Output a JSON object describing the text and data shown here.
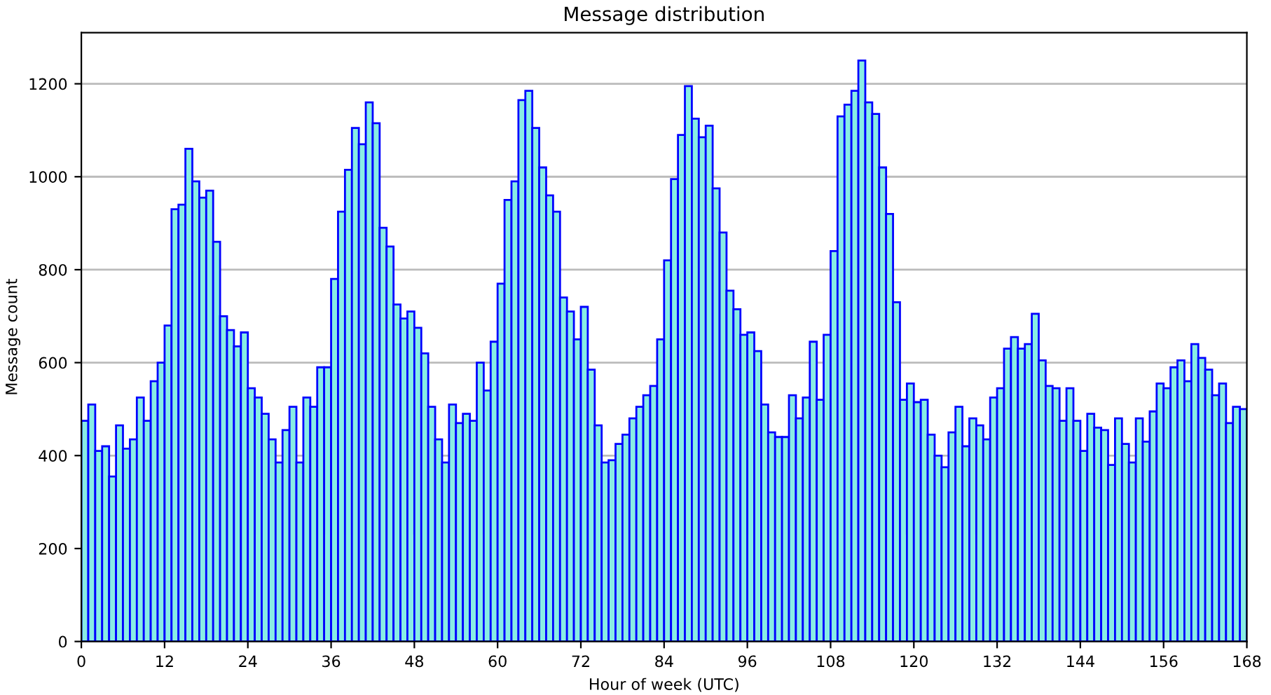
{
  "chart_data": {
    "type": "histogram",
    "title": "Message distribution",
    "xlabel": "Hour of week (UTC)",
    "ylabel": "Message count",
    "bins": [
      0,
      1,
      2,
      3,
      4,
      5,
      6,
      7,
      8,
      9,
      10,
      11,
      12,
      13,
      14,
      15,
      16,
      17,
      18,
      19,
      20,
      21,
      22,
      23,
      24,
      25,
      26,
      27,
      28,
      29,
      30,
      31,
      32,
      33,
      34,
      35,
      36,
      37,
      38,
      39,
      40,
      41,
      42,
      43,
      44,
      45,
      46,
      47,
      48,
      49,
      50,
      51,
      52,
      53,
      54,
      55,
      56,
      57,
      58,
      59,
      60,
      61,
      62,
      63,
      64,
      65,
      66,
      67,
      68,
      69,
      70,
      71,
      72,
      73,
      74,
      75,
      76,
      77,
      78,
      79,
      80,
      81,
      82,
      83,
      84,
      85,
      86,
      87,
      88,
      89,
      90,
      91,
      92,
      93,
      94,
      95,
      96,
      97,
      98,
      99,
      100,
      101,
      102,
      103,
      104,
      105,
      106,
      107,
      108,
      109,
      110,
      111,
      112,
      113,
      114,
      115,
      116,
      117,
      118,
      119,
      120,
      121,
      122,
      123,
      124,
      125,
      126,
      127,
      128,
      129,
      130,
      131,
      132,
      133,
      134,
      135,
      136,
      137,
      138,
      139,
      140,
      141,
      142,
      143,
      144,
      145,
      146,
      147,
      148,
      149,
      150,
      151,
      152,
      153,
      154,
      155,
      156,
      157,
      158,
      159,
      160,
      161,
      162,
      163,
      164,
      165,
      166,
      167,
      168
    ],
    "values": [
      475,
      510,
      410,
      420,
      355,
      465,
      415,
      435,
      525,
      475,
      560,
      600,
      680,
      930,
      940,
      1060,
      990,
      955,
      970,
      860,
      700,
      670,
      635,
      665,
      545,
      525,
      490,
      435,
      385,
      455,
      505,
      385,
      525,
      505,
      590,
      590,
      780,
      925,
      1015,
      1105,
      1070,
      1160,
      1115,
      890,
      850,
      725,
      695,
      710,
      675,
      620,
      505,
      435,
      385,
      510,
      470,
      490,
      475,
      600,
      540,
      645,
      770,
      950,
      990,
      1165,
      1185,
      1105,
      1020,
      960,
      925,
      740,
      710,
      650,
      720,
      585,
      465,
      385,
      390,
      425,
      445,
      480,
      505,
      530,
      550,
      650,
      820,
      995,
      1090,
      1195,
      1125,
      1085,
      1110,
      975,
      880,
      755,
      715,
      660,
      665,
      625,
      510,
      450,
      440,
      440,
      530,
      480,
      525,
      645,
      520,
      660,
      840,
      1130,
      1155,
      1185,
      1250,
      1160,
      1135,
      1020,
      920,
      730,
      520,
      555,
      515,
      520,
      445,
      400,
      375,
      450,
      505,
      420,
      480,
      465,
      435,
      525,
      545,
      630,
      655,
      630,
      640,
      705,
      605,
      550,
      545,
      475,
      545,
      475,
      410,
      490,
      460,
      455,
      380,
      480,
      425,
      385,
      480,
      430,
      495,
      555,
      545,
      590,
      605,
      560,
      640,
      610,
      585,
      530,
      555,
      470,
      505,
      500
    ],
    "color": "#88ece4",
    "xlim": [
      0,
      168
    ],
    "xticks": [
      0,
      12,
      24,
      36,
      48,
      60,
      72,
      84,
      96,
      108,
      120,
      132,
      144,
      156,
      168
    ],
    "ylim": [
      0,
      1310
    ],
    "yticks": [
      0,
      200,
      400,
      600,
      800,
      1000,
      1200
    ],
    "grid": "y",
    "legend": false
  }
}
